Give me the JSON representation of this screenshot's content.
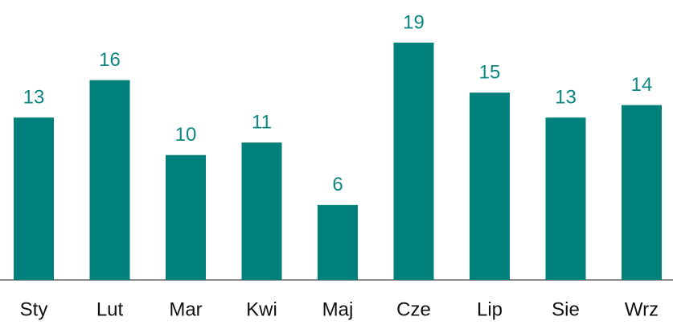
{
  "chart_data": {
    "type": "bar",
    "categories": [
      "Sty",
      "Lut",
      "Mar",
      "Kwi",
      "Maj",
      "Cze",
      "Lip",
      "Sie",
      "Wrz"
    ],
    "values": [
      13,
      16,
      10,
      11,
      6,
      19,
      15,
      13,
      14
    ],
    "color": "#00807b"
  }
}
